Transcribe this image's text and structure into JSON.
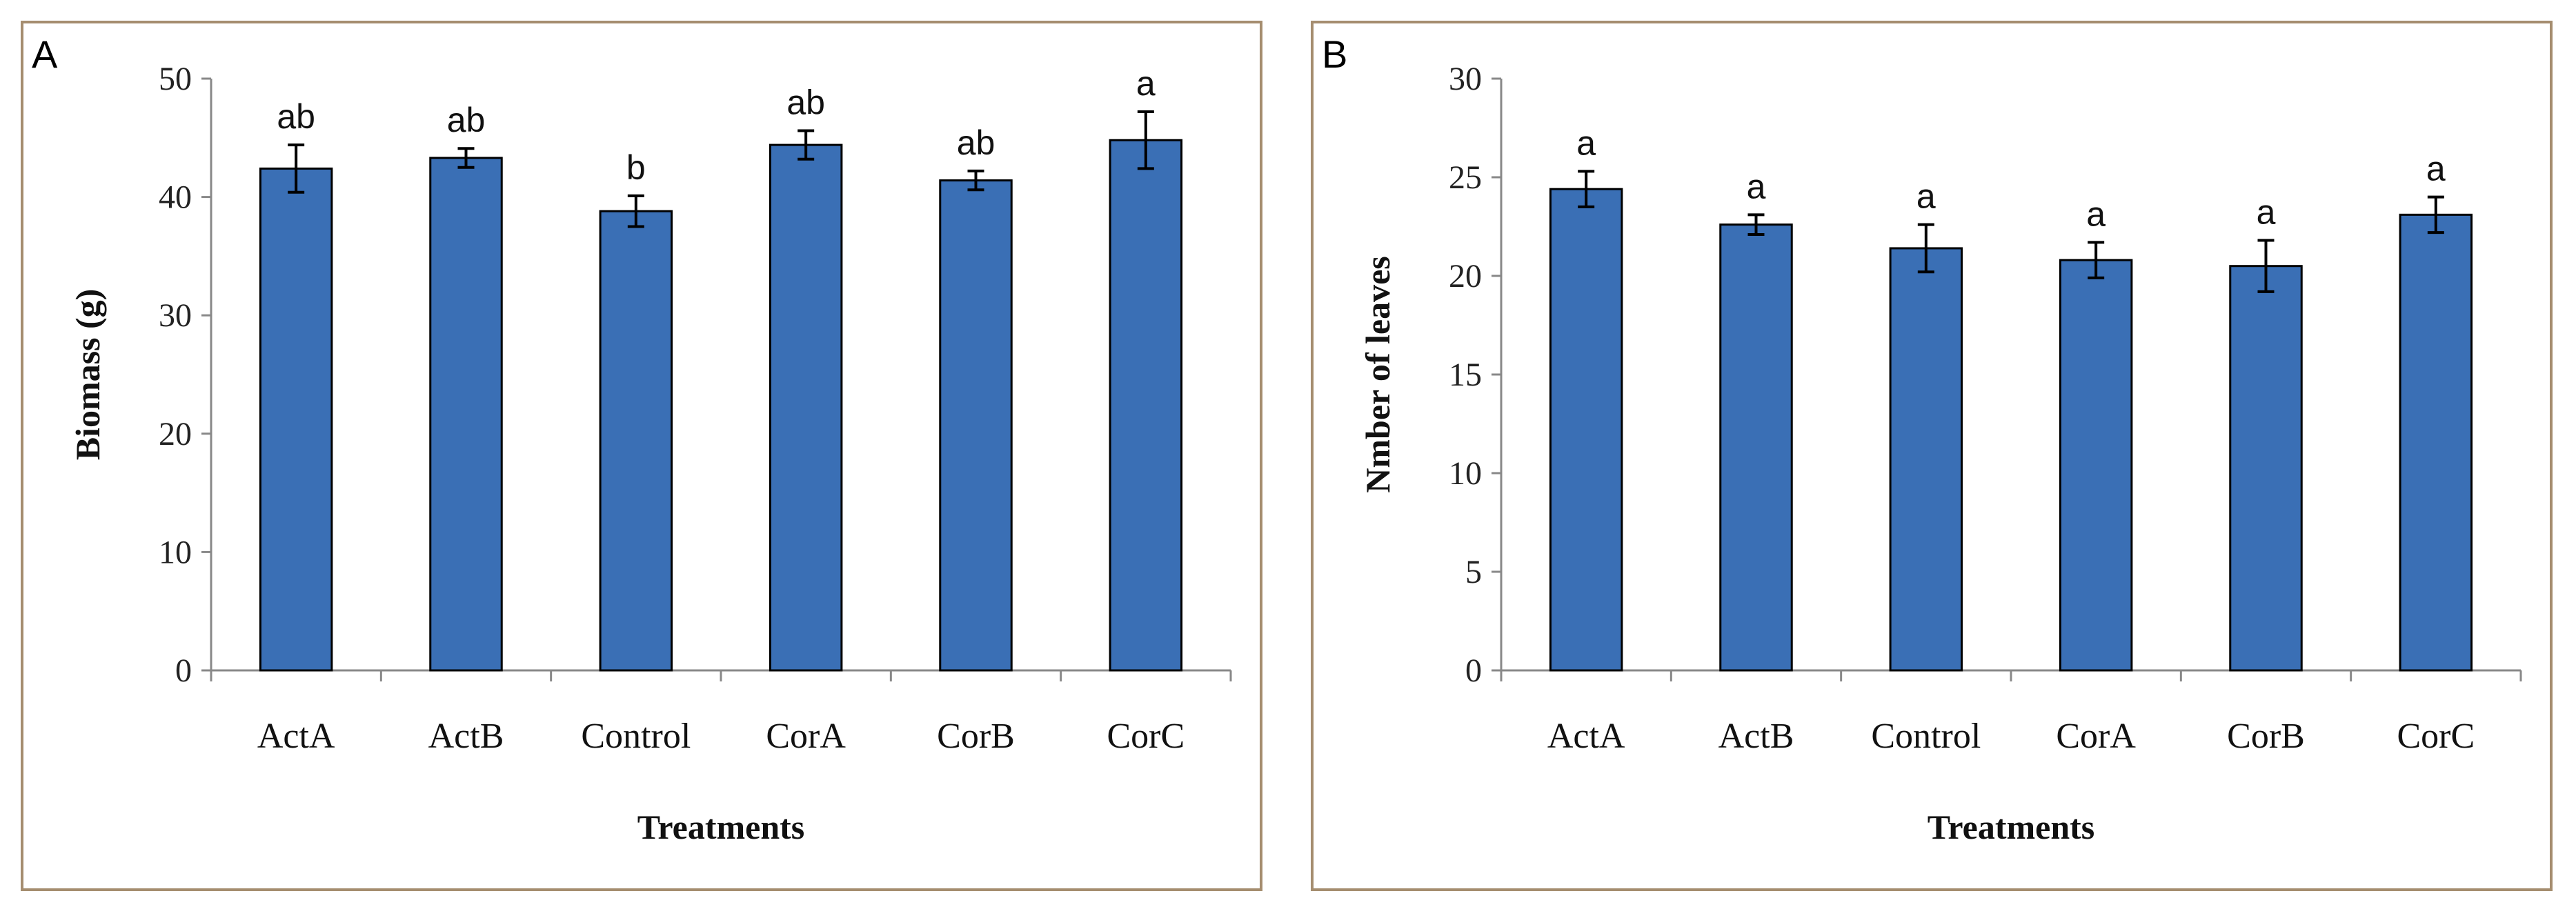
{
  "chart_data": [
    {
      "type": "bar",
      "panel_label": "A",
      "categories": [
        "ActA",
        "ActB",
        "Control",
        "CorA",
        "CorB",
        "CorC"
      ],
      "values": [
        42.4,
        43.3,
        38.8,
        44.4,
        41.4,
        44.8
      ],
      "errors": [
        2.0,
        0.8,
        1.3,
        1.2,
        0.8,
        2.4
      ],
      "significance": [
        "ab",
        "ab",
        "b",
        "ab",
        "ab",
        "a"
      ],
      "xlabel": "Treatments",
      "ylabel": "Biomass (g)",
      "ylim": [
        0,
        50
      ],
      "yticks": [
        0,
        10,
        20,
        30,
        40,
        50
      ],
      "bar_color": "#3a6fb5",
      "grid": false
    },
    {
      "type": "bar",
      "panel_label": "B",
      "categories": [
        "ActA",
        "ActB",
        "Control",
        "CorA",
        "CorB",
        "CorC"
      ],
      "values": [
        24.4,
        22.6,
        21.4,
        20.8,
        20.5,
        23.1
      ],
      "errors": [
        0.9,
        0.5,
        1.2,
        0.9,
        1.3,
        0.9
      ],
      "significance": [
        "a",
        "a",
        "a",
        "a",
        "a",
        "a"
      ],
      "xlabel": "Treatments",
      "ylabel": "Nmber of leaves",
      "ylim": [
        0,
        30
      ],
      "yticks": [
        0,
        5,
        10,
        15,
        20,
        25,
        30
      ],
      "bar_color": "#3a6fb5",
      "grid": false
    }
  ]
}
